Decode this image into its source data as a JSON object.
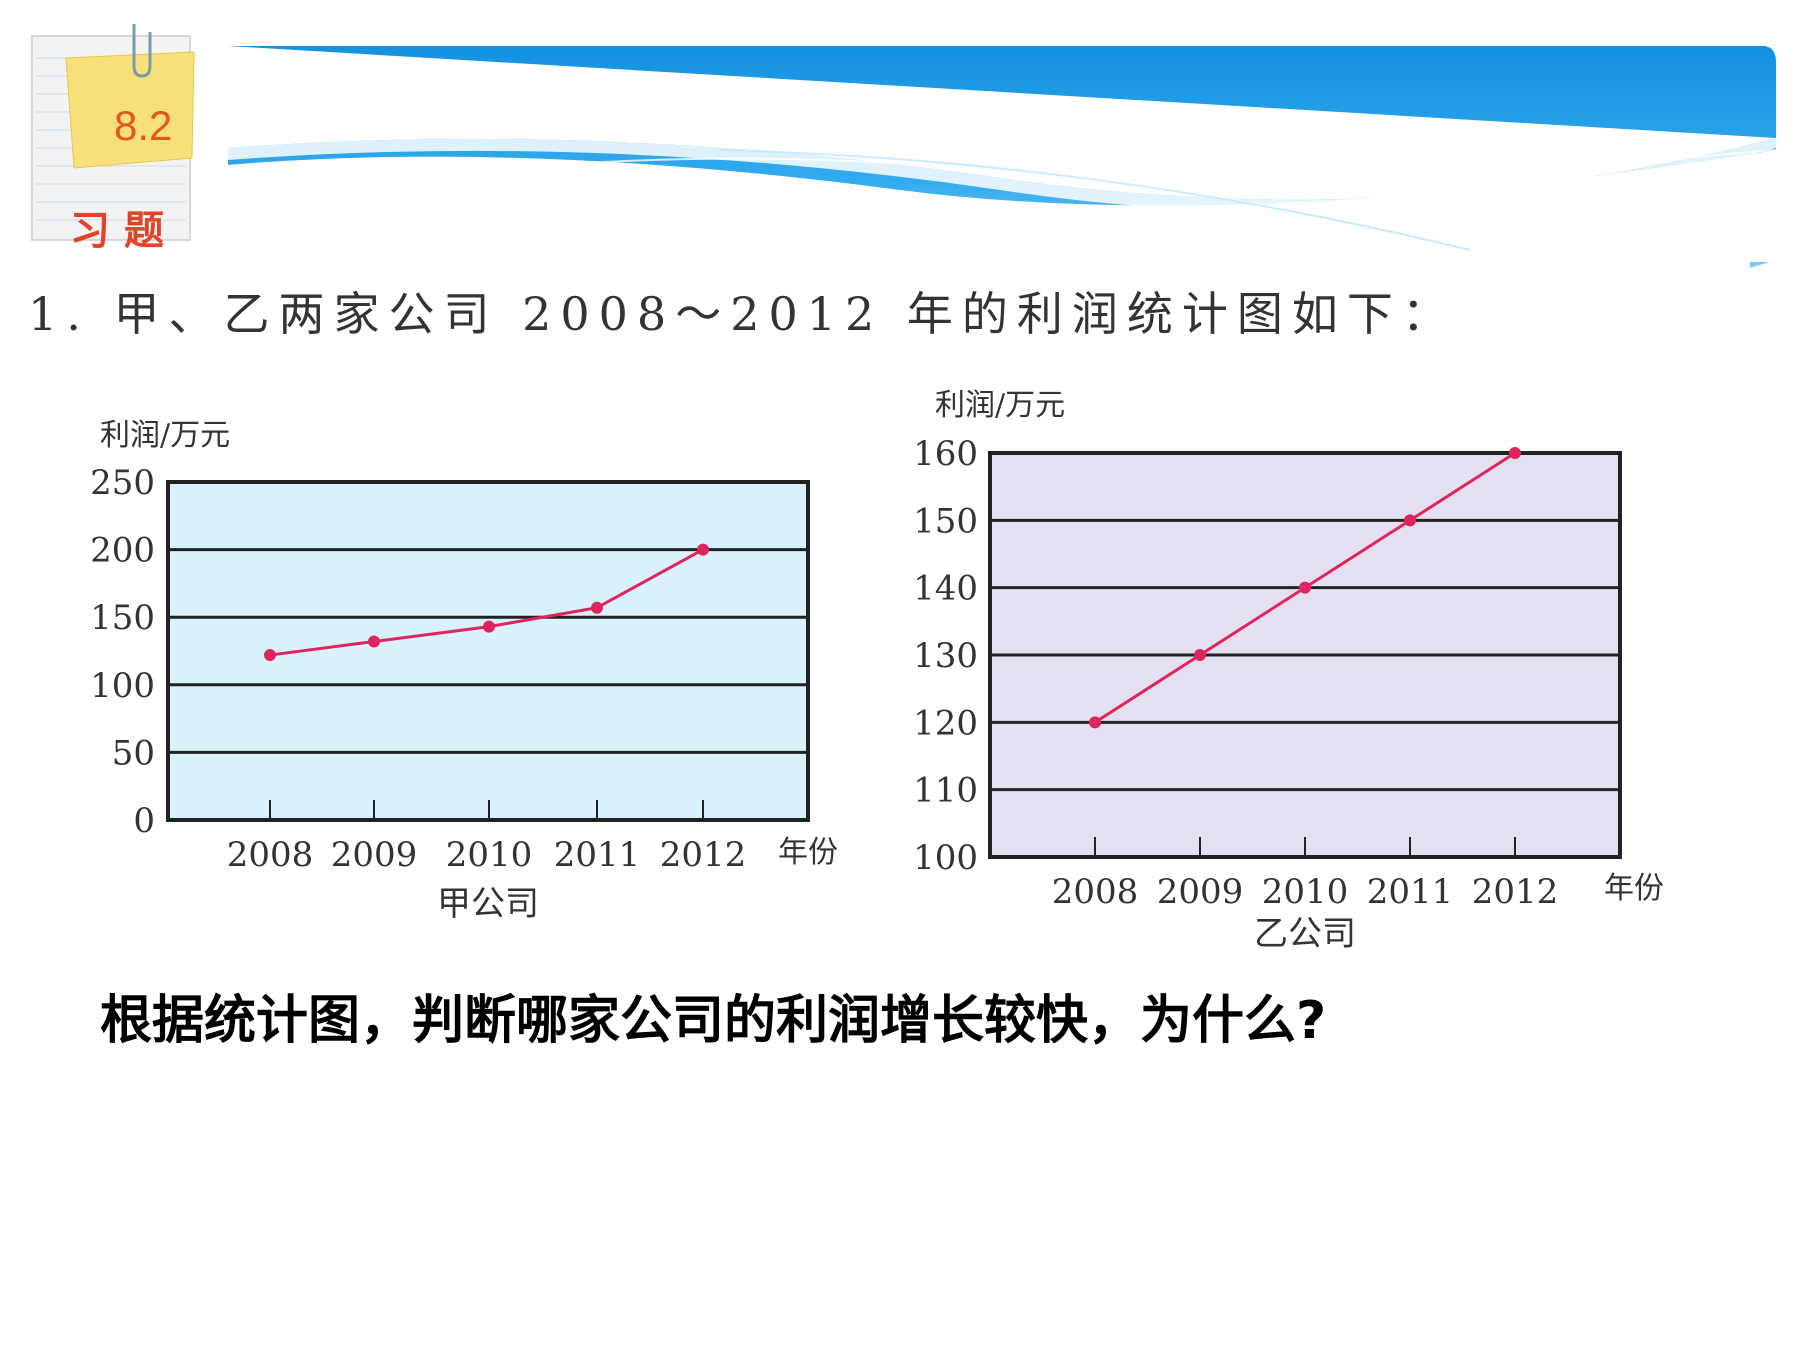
{
  "badge": {
    "number": "8.2",
    "label": "习题"
  },
  "problem": {
    "text": "1. 甲、乙两家公司 2008～2012 年的利润统计图如下："
  },
  "question": {
    "text": "根据统计图，判断哪家公司的利润增长较快，为什么?"
  },
  "colors": {
    "banner": "#1a9be6",
    "line": "#e0245e",
    "plot_bg_left": "#d9f1fb",
    "plot_bg_right": "#e4e0f2"
  },
  "chart_data": [
    {
      "type": "line",
      "title": "甲公司",
      "ylabel": "利润/万元",
      "xlabel": "年份",
      "categories": [
        "2008",
        "2009",
        "2010",
        "2011",
        "2012"
      ],
      "values": [
        122,
        132,
        143,
        157,
        200
      ],
      "yticks": [
        0,
        50,
        100,
        150,
        200,
        250
      ],
      "ylim": [
        0,
        250
      ],
      "grid": true,
      "legend": "none"
    },
    {
      "type": "line",
      "title": "乙公司",
      "ylabel": "利润/万元",
      "xlabel": "年份",
      "categories": [
        "2008",
        "2009",
        "2010",
        "2011",
        "2012"
      ],
      "values": [
        120,
        130,
        140,
        150,
        160
      ],
      "yticks": [
        100,
        110,
        120,
        130,
        140,
        150,
        160
      ],
      "ylim": [
        100,
        160
      ],
      "grid": true,
      "legend": "none"
    }
  ]
}
